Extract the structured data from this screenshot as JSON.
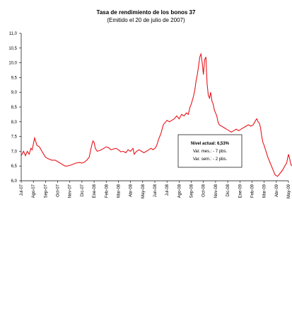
{
  "chart_data": {
    "type": "line",
    "title": "Tasa de rendimiento de los bonos 37",
    "subtitle": "(Emitido el 20 de julio de 2007)",
    "xlabel": "",
    "ylabel": "",
    "ylim": [
      6.0,
      11.0
    ],
    "grid": false,
    "line_color": "#e8141b",
    "y_ticks": [
      "11,0",
      "10,5",
      "10,0",
      "9,5",
      "9,0",
      "8,5",
      "8,0",
      "7,5",
      "7,0",
      "6,5",
      "6,0"
    ],
    "y_tick_values": [
      11.0,
      10.5,
      10.0,
      9.5,
      9.0,
      8.5,
      8.0,
      7.5,
      7.0,
      6.5,
      6.0
    ],
    "x_ticks": [
      "Jul-07",
      "Ago-07",
      "Sep-07",
      "Oct-07",
      "Nov-07",
      "Dic-07",
      "Ene-08",
      "Feb-08",
      "Mar-08",
      "Abr-08",
      "May-08",
      "Jun-08",
      "Jul-08",
      "Ago-08",
      "Sep-08",
      "Oct-08",
      "Nov-08",
      "Dic-08",
      "Ene-09",
      "Feb-09",
      "Mar-09",
      "Abr-09",
      "May-09"
    ],
    "series": [
      {
        "x": [
          0,
          0.2,
          0.35,
          0.5,
          0.65,
          0.8,
          0.9,
          1.0,
          1.1,
          1.3,
          1.5,
          1.7,
          1.85,
          2.0,
          2.2,
          2.5,
          2.8,
          3.0,
          3.2,
          3.4,
          3.6,
          3.8,
          4.0,
          4.2,
          4.5,
          4.8,
          5.0,
          5.2,
          5.4,
          5.6,
          5.7,
          5.8,
          5.9,
          6.0,
          6.1,
          6.25,
          6.4,
          6.6,
          6.8,
          7.0,
          7.2,
          7.4,
          7.6,
          7.8,
          8.0,
          8.2,
          8.4,
          8.6,
          8.8,
          9.0,
          9.1,
          9.2,
          9.3,
          9.5,
          9.7,
          9.9,
          10.1,
          10.3,
          10.5,
          10.7,
          10.85,
          11.0,
          11.1,
          11.2,
          11.3,
          11.5,
          11.7,
          11.9,
          12.0,
          12.2,
          12.4,
          12.6,
          12.8,
          13.0,
          13.2,
          13.4,
          13.6,
          13.75,
          13.9,
          14.0,
          14.1,
          14.2,
          14.3,
          14.4,
          14.5,
          14.6,
          14.7,
          14.8,
          14.9,
          15.0,
          15.1,
          15.2,
          15.3,
          15.4,
          15.5,
          15.6,
          15.7,
          15.8,
          15.9,
          16.0,
          16.1,
          16.2,
          16.3,
          16.5,
          16.7,
          16.9,
          17.1,
          17.3,
          17.5,
          17.7,
          17.9,
          18.1,
          18.3,
          18.5,
          18.7,
          18.9,
          19.1,
          19.3,
          19.4,
          19.5,
          19.6,
          19.7,
          19.8,
          19.9,
          20.0,
          20.15,
          20.3,
          20.5,
          20.7,
          20.9,
          21.1,
          21.3,
          21.5,
          21.7,
          21.85,
          22.0,
          22.1,
          22.2,
          22.3,
          22.4,
          22.5
        ],
        "y": [
          6.85,
          7.0,
          6.85,
          7.0,
          6.9,
          7.1,
          7.05,
          7.25,
          7.45,
          7.2,
          7.15,
          7.0,
          6.9,
          6.8,
          6.75,
          6.7,
          6.7,
          6.65,
          6.6,
          6.55,
          6.5,
          6.5,
          6.52,
          6.55,
          6.6,
          6.62,
          6.6,
          6.63,
          6.7,
          6.8,
          7.0,
          7.2,
          7.35,
          7.3,
          7.1,
          7.0,
          7.02,
          7.05,
          7.1,
          7.15,
          7.12,
          7.05,
          7.08,
          7.1,
          7.05,
          6.98,
          7.0,
          6.95,
          7.05,
          7.0,
          7.05,
          7.1,
          6.9,
          7.0,
          7.05,
          7.0,
          6.95,
          7.0,
          7.05,
          7.1,
          7.05,
          7.1,
          7.15,
          7.25,
          7.4,
          7.6,
          7.9,
          8.0,
          8.05,
          8.0,
          8.05,
          8.1,
          8.2,
          8.1,
          8.25,
          8.2,
          8.3,
          8.25,
          8.5,
          8.6,
          8.75,
          8.9,
          9.1,
          9.4,
          9.6,
          9.9,
          10.2,
          10.3,
          10.0,
          9.6,
          10.1,
          10.2,
          9.3,
          8.9,
          8.8,
          9.0,
          8.7,
          8.6,
          8.4,
          8.3,
          8.2,
          8.0,
          7.9,
          7.85,
          7.8,
          7.75,
          7.7,
          7.65,
          7.7,
          7.75,
          7.7,
          7.75,
          7.8,
          7.85,
          7.9,
          7.85,
          7.9,
          8.05,
          8.1,
          8.0,
          7.95,
          7.8,
          7.5,
          7.3,
          7.2,
          7.0,
          6.8,
          6.6,
          6.4,
          6.2,
          6.15,
          6.25,
          6.35,
          6.5,
          6.6,
          6.9,
          6.75,
          6.55,
          6.5,
          6.6,
          6.53
        ]
      }
    ],
    "annotation": {
      "line1": "Nivel actual: 6,53%",
      "line2": "Var. mes.: - 7 pbs.",
      "line3": "Var. sem.: - 2 pbs."
    }
  }
}
